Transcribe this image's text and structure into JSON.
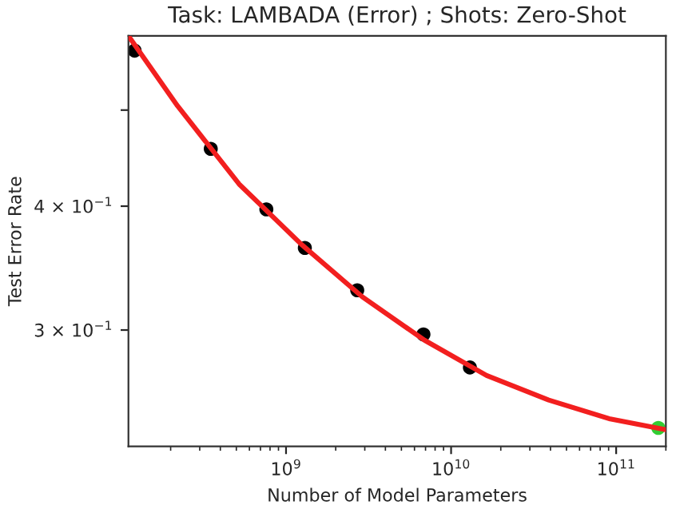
{
  "chart_data": {
    "type": "scatter",
    "title": "Task: LAMBADA (Error) ; Shots: Zero-Shot",
    "xlabel": "Number of Model Parameters",
    "ylabel": "Test Error Rate",
    "log": "xy",
    "grid": false,
    "legend": false,
    "marker": "circle",
    "xlim": [
      111000000.0,
      200000000000.0
    ],
    "ylim": [
      0.229,
      0.594
    ],
    "xticks": [
      {
        "value": 1000000000.0,
        "label": "10$^{9}$"
      },
      {
        "value": 10000000000.0,
        "label": "10$^{10}$"
      },
      {
        "value": 100000000000.0,
        "label": "10$^{11}$"
      }
    ],
    "yticks": [
      {
        "value": 0.3,
        "label": "3 × 10$^{−1}$"
      },
      {
        "value": 0.4,
        "label": "4 × 10$^{−1}$"
      },
      {
        "value": 0.5,
        "label": null
      }
    ],
    "series": [
      {
        "type": "line",
        "color": "#f21f1f",
        "marker": "none",
        "line_style": "solid",
        "x": [
          111000000.0,
          220000000.0,
          520000000.0,
          1240000000.0,
          2900000000.0,
          6900000000.0,
          16400000000.0,
          39000000000.0,
          92000000000.0,
          200000000000.0
        ],
        "values": [
          0.594,
          0.505,
          0.421,
          0.366,
          0.324,
          0.293,
          0.27,
          0.255,
          0.244,
          0.238
        ]
      },
      {
        "color": "#000000",
        "x": [
          121000000.0,
          350000000.0,
          760000000.0,
          1300000000.0,
          2700000000.0,
          6800000000.0,
          13000000000.0
        ],
        "values": [
          0.574,
          0.457,
          0.397,
          0.363,
          0.329,
          0.297,
          0.275
        ]
      },
      {
        "color": "#33cc33",
        "x": [
          180000000000.0
        ],
        "values": [
          0.239
        ]
      }
    ]
  }
}
